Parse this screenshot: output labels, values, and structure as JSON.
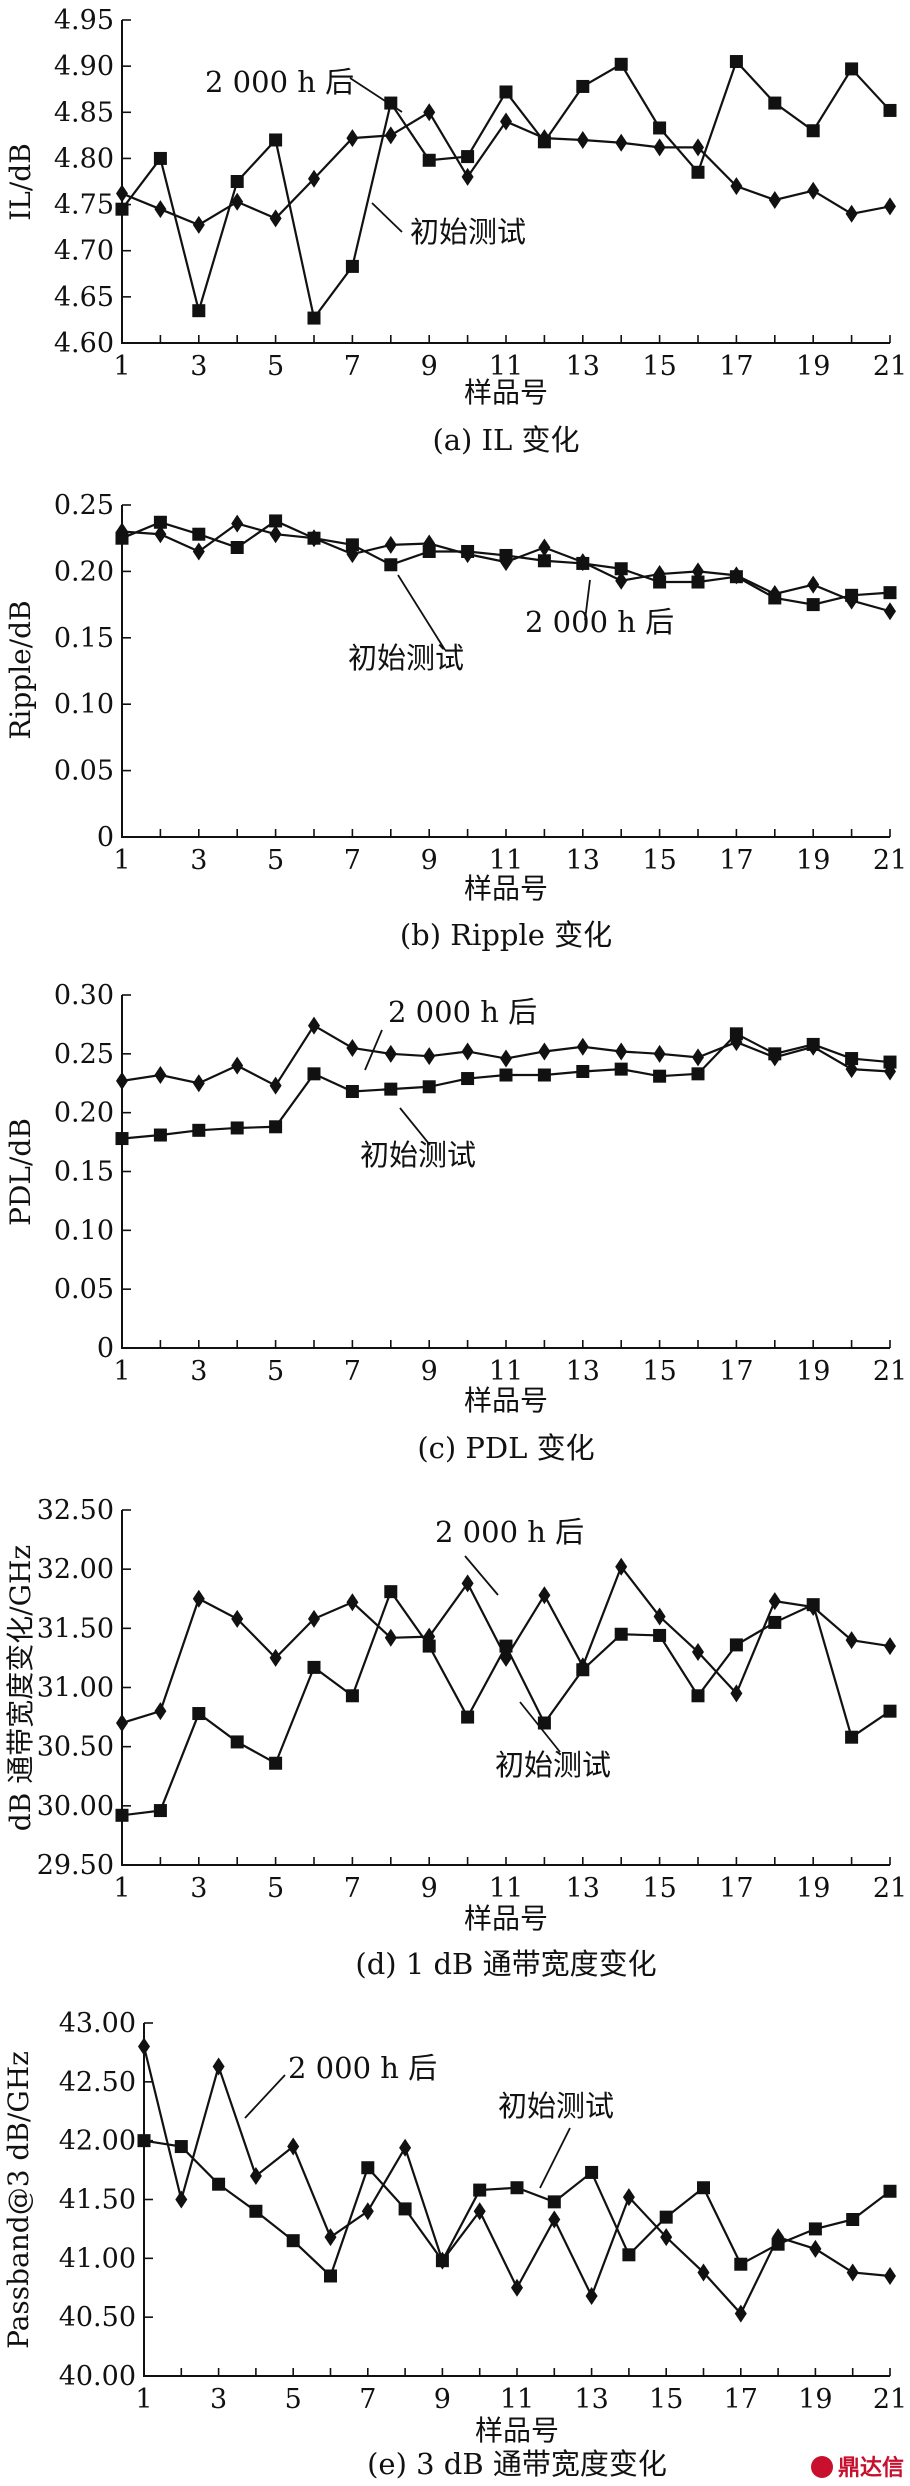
{
  "chart_data": [
    {
      "type": "line",
      "ylabel": "IL/dB",
      "xlabel": "样品号",
      "caption": "(a) IL 变化",
      "x": [
        1,
        2,
        3,
        4,
        5,
        6,
        7,
        8,
        9,
        10,
        11,
        12,
        13,
        14,
        15,
        16,
        17,
        18,
        19,
        20,
        21
      ],
      "xticks": [
        1,
        3,
        5,
        7,
        9,
        11,
        13,
        15,
        17,
        19,
        21
      ],
      "ylim": [
        4.6,
        4.95
      ],
      "yticks": [
        "4.60",
        "4.65",
        "4.70",
        "4.75",
        "4.80",
        "4.85",
        "4.90",
        "4.95"
      ],
      "series": [
        {
          "name": "2 000 h 后",
          "marker": "square",
          "values": [
            4.745,
            4.8,
            4.635,
            4.775,
            4.82,
            4.627,
            4.683,
            4.86,
            4.798,
            4.802,
            4.872,
            4.818,
            4.878,
            4.902,
            4.833,
            4.785,
            4.905,
            4.86,
            4.83,
            4.897,
            4.852
          ]
        },
        {
          "name": "初始测试",
          "marker": "diamond",
          "values": [
            4.762,
            4.745,
            4.728,
            4.753,
            4.735,
            4.778,
            4.822,
            4.825,
            4.85,
            4.78,
            4.84,
            4.822,
            4.82,
            4.817,
            4.812,
            4.812,
            4.77,
            4.755,
            4.765,
            4.74,
            4.748
          ]
        }
      ]
    },
    {
      "type": "line",
      "ylabel": "Ripple/dB",
      "xlabel": "样品号",
      "caption": "(b) Ripple 变化",
      "x": [
        1,
        2,
        3,
        4,
        5,
        6,
        7,
        8,
        9,
        10,
        11,
        12,
        13,
        14,
        15,
        16,
        17,
        18,
        19,
        20,
        21
      ],
      "xticks": [
        1,
        3,
        5,
        7,
        9,
        11,
        13,
        15,
        17,
        19,
        21
      ],
      "ylim": [
        0,
        0.25
      ],
      "yticks": [
        "0",
        "0.05",
        "0.10",
        "0.15",
        "0.20",
        "0.25"
      ],
      "series": [
        {
          "name": "2 000 h 后",
          "marker": "square",
          "values": [
            0.225,
            0.237,
            0.228,
            0.218,
            0.238,
            0.225,
            0.22,
            0.205,
            0.215,
            0.215,
            0.212,
            0.208,
            0.206,
            0.202,
            0.192,
            0.192,
            0.196,
            0.18,
            0.175,
            0.182,
            0.184
          ]
        },
        {
          "name": "初始测试",
          "marker": "diamond",
          "values": [
            0.23,
            0.228,
            0.215,
            0.236,
            0.228,
            0.225,
            0.213,
            0.22,
            0.221,
            0.213,
            0.207,
            0.218,
            0.207,
            0.193,
            0.198,
            0.2,
            0.197,
            0.183,
            0.19,
            0.178,
            0.17
          ]
        }
      ]
    },
    {
      "type": "line",
      "ylabel": "PDL/dB",
      "xlabel": "样品号",
      "caption": "(c) PDL 变化",
      "x": [
        1,
        2,
        3,
        4,
        5,
        6,
        7,
        8,
        9,
        10,
        11,
        12,
        13,
        14,
        15,
        16,
        17,
        18,
        19,
        20,
        21
      ],
      "xticks": [
        1,
        3,
        5,
        7,
        9,
        11,
        13,
        15,
        17,
        19,
        21
      ],
      "ylim": [
        0,
        0.3
      ],
      "yticks": [
        "0",
        "0.05",
        "0.10",
        "0.15",
        "0.20",
        "0.25",
        "0.30"
      ],
      "series": [
        {
          "name": "2 000 h 后",
          "marker": "diamond",
          "values": [
            0.227,
            0.232,
            0.225,
            0.24,
            0.223,
            0.274,
            0.255,
            0.25,
            0.248,
            0.252,
            0.246,
            0.252,
            0.256,
            0.252,
            0.25,
            0.247,
            0.26,
            0.247,
            0.256,
            0.237,
            0.235
          ]
        },
        {
          "name": "初始测试",
          "marker": "square",
          "values": [
            0.178,
            0.181,
            0.185,
            0.187,
            0.188,
            0.233,
            0.218,
            0.22,
            0.222,
            0.229,
            0.232,
            0.232,
            0.235,
            0.237,
            0.231,
            0.233,
            0.267,
            0.25,
            0.258,
            0.246,
            0.243
          ]
        }
      ]
    },
    {
      "type": "line",
      "ylabel": "dB 通带宽度变化/GHz",
      "xlabel": "样品号",
      "caption": "(d) 1 dB 通带宽度变化",
      "x": [
        1,
        2,
        3,
        4,
        5,
        6,
        7,
        8,
        9,
        10,
        11,
        12,
        13,
        14,
        15,
        16,
        17,
        18,
        19,
        20,
        21
      ],
      "xticks": [
        1,
        3,
        5,
        7,
        9,
        11,
        13,
        15,
        17,
        19,
        21
      ],
      "ylim": [
        29.5,
        32.5
      ],
      "yticks": [
        "29.50",
        "30.00",
        "30.50",
        "31.00",
        "31.50",
        "32.00",
        "32.50"
      ],
      "series": [
        {
          "name": "2 000 h 后",
          "marker": "diamond",
          "values": [
            30.7,
            30.8,
            31.75,
            31.58,
            31.25,
            31.58,
            31.72,
            31.42,
            31.43,
            31.88,
            31.25,
            31.78,
            31.18,
            32.02,
            31.6,
            31.3,
            30.95,
            31.73,
            31.68,
            31.4,
            31.35
          ]
        },
        {
          "name": "初始测试",
          "marker": "square",
          "values": [
            29.92,
            29.96,
            30.78,
            30.54,
            30.36,
            31.17,
            30.93,
            31.81,
            31.35,
            30.75,
            31.35,
            30.7,
            31.15,
            31.45,
            31.44,
            30.93,
            31.36,
            31.55,
            31.7,
            30.58,
            30.8
          ]
        }
      ]
    },
    {
      "type": "line",
      "ylabel": "Passband@3 dB/GHz",
      "xlabel": "样品号",
      "caption": "(e) 3 dB 通带宽度变化",
      "x": [
        1,
        2,
        3,
        4,
        5,
        6,
        7,
        8,
        9,
        10,
        11,
        12,
        13,
        14,
        15,
        16,
        17,
        18,
        19,
        20,
        21
      ],
      "xticks": [
        1,
        3,
        5,
        7,
        9,
        11,
        13,
        15,
        17,
        19,
        21
      ],
      "ylim": [
        40.0,
        43.0
      ],
      "yticks": [
        "40.00",
        "40.50",
        "41.00",
        "41.50",
        "42.00",
        "42.50",
        "43.00"
      ],
      "series": [
        {
          "name": "2 000 h 后",
          "marker": "diamond",
          "values": [
            42.8,
            41.5,
            42.63,
            41.7,
            41.95,
            41.18,
            41.4,
            41.94,
            40.98,
            41.4,
            40.75,
            41.33,
            40.68,
            41.52,
            41.18,
            40.88,
            40.53,
            41.18,
            41.08,
            40.88,
            40.85
          ]
        },
        {
          "name": "初始测试",
          "marker": "square",
          "values": [
            42.0,
            41.95,
            41.63,
            41.4,
            41.15,
            40.85,
            41.77,
            41.42,
            40.98,
            41.58,
            41.6,
            41.48,
            41.73,
            41.03,
            41.35,
            41.6,
            40.95,
            41.12,
            41.25,
            41.33,
            41.57
          ]
        }
      ]
    }
  ],
  "annotations": [
    {
      "text": "2 000 h 后"
    },
    {
      "text": "初始测试"
    },
    {
      "text": "初始测试"
    },
    {
      "text": "2 000 h 后"
    },
    {
      "text": "2 000 h 后"
    },
    {
      "text": "初始测试"
    },
    {
      "text": "2 000 h 后"
    },
    {
      "text": "初始测试"
    },
    {
      "text": "2 000 h 后"
    },
    {
      "text": "初始测试"
    }
  ],
  "watermark": {
    "text": "鼎达信",
    "color": "#c8102e"
  }
}
